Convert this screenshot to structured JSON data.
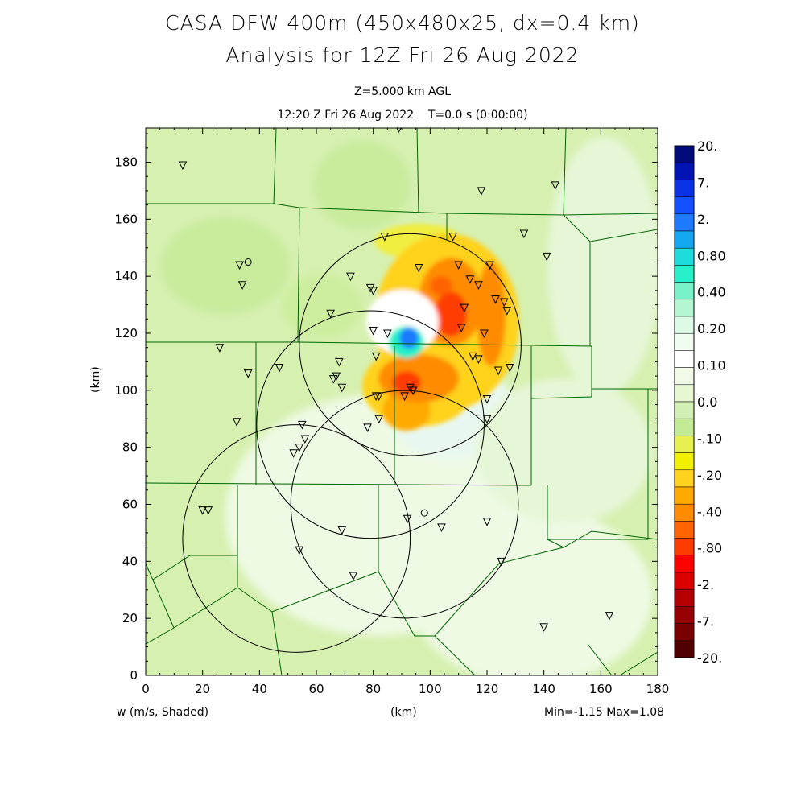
{
  "title": "CASA DFW 400m (450x480x25, dx=0.4 km)",
  "subtitle": "Analysis for 12Z Fri 26 Aug 2022",
  "level_label": "Z=5.000 km AGL",
  "time_label": "12:20 Z Fri 26 Aug 2022    T=0.0 s (0:00:00)",
  "field_label": "w (m/s, Shaded)",
  "minmax_label": "Min=-1.15 Max=1.08",
  "chart_data": {
    "type": "heatmap",
    "xlabel": "(km)",
    "ylabel": "(km)",
    "xlim": [
      0,
      180
    ],
    "ylim": [
      0,
      192
    ],
    "x_ticks": [
      "0",
      "20",
      "40",
      "60",
      "80",
      "100",
      "120",
      "140",
      "160",
      "180"
    ],
    "y_ticks": [
      "0",
      "20",
      "40",
      "60",
      "80",
      "100",
      "120",
      "140",
      "160",
      "180"
    ],
    "colorbar": {
      "labels": [
        "20.",
        "7.",
        "2.",
        "0.80",
        "0.40",
        "0.20",
        "0.10",
        "0.0",
        "-.10",
        "-.20",
        "-.40",
        "-.80",
        "-2.",
        "-7.",
        "-20."
      ],
      "colors": [
        "#000a78",
        "#0014b4",
        "#0a32e6",
        "#1450ff",
        "#1e7aff",
        "#14a8f0",
        "#1edcdc",
        "#28f0c8",
        "#78f0c8",
        "#b4f5d2",
        "#dcfae6",
        "#f0fcf0",
        "#ffffff",
        "#f0fae6",
        "#e6f7d2",
        "#d2f0b4",
        "#c3eb96",
        "#e6f050",
        "#f0f000",
        "#ffd21e",
        "#ffaa00",
        "#ff8c00",
        "#ff6400",
        "#ff3c00",
        "#ff0000",
        "#dc0000",
        "#b40000",
        "#960000",
        "#780000",
        "#500000"
      ]
    },
    "radar_circles_km": [
      {
        "x": 93,
        "y": 116,
        "r": 39
      },
      {
        "x": 79,
        "y": 88,
        "r": 40
      },
      {
        "x": 53,
        "y": 48,
        "r": 40
      },
      {
        "x": 91,
        "y": 60,
        "r": 40
      }
    ],
    "stations_km": [
      [
        13,
        179
      ],
      [
        89,
        192
      ],
      [
        118,
        170
      ],
      [
        144,
        172
      ],
      [
        33,
        144
      ],
      [
        34,
        137
      ],
      [
        108,
        154
      ],
      [
        133,
        155
      ],
      [
        84,
        154
      ],
      [
        141,
        147
      ],
      [
        96,
        143
      ],
      [
        110,
        144
      ],
      [
        121,
        144
      ],
      [
        72,
        140
      ],
      [
        79,
        136
      ],
      [
        80,
        135
      ],
      [
        114,
        139
      ],
      [
        117,
        137
      ],
      [
        123,
        132
      ],
      [
        126,
        131
      ],
      [
        127,
        128
      ],
      [
        65,
        127
      ],
      [
        112,
        129
      ],
      [
        111,
        122
      ],
      [
        119,
        120
      ],
      [
        80,
        121
      ],
      [
        85,
        120
      ],
      [
        26,
        115
      ],
      [
        81,
        112
      ],
      [
        115,
        112
      ],
      [
        117,
        111
      ],
      [
        68,
        110
      ],
      [
        47,
        108
      ],
      [
        124,
        107
      ],
      [
        128,
        108
      ],
      [
        36,
        106
      ],
      [
        67,
        105
      ],
      [
        66,
        104
      ],
      [
        69,
        101
      ],
      [
        81,
        98
      ],
      [
        82,
        98
      ],
      [
        93,
        101
      ],
      [
        94,
        100
      ],
      [
        91,
        98
      ],
      [
        120,
        97
      ],
      [
        32,
        89
      ],
      [
        82,
        90
      ],
      [
        78,
        87
      ],
      [
        120,
        90
      ],
      [
        55,
        88
      ],
      [
        56,
        83
      ],
      [
        54,
        80
      ],
      [
        52,
        78
      ],
      [
        20,
        58
      ],
      [
        22,
        58
      ],
      [
        69,
        51
      ],
      [
        92,
        55
      ],
      [
        104,
        52
      ],
      [
        120,
        54
      ],
      [
        54,
        44
      ],
      [
        73,
        35
      ],
      [
        125,
        40
      ],
      [
        140,
        17
      ],
      [
        163,
        21
      ]
    ],
    "circle_markers_km": [
      [
        36,
        145
      ],
      [
        98,
        57
      ]
    ]
  }
}
